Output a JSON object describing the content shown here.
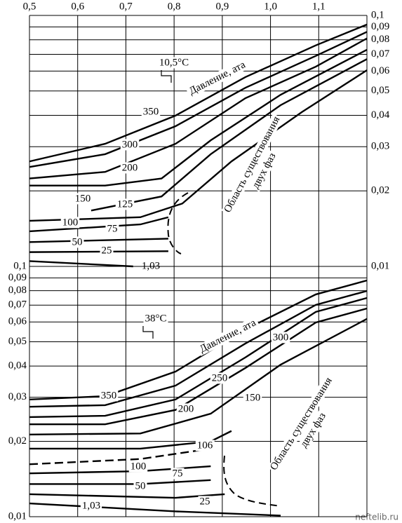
{
  "chart_data": [
    {
      "type": "line",
      "log_y": true,
      "y_axis_side": "right",
      "grid": true,
      "xlim": [
        0.5,
        1.2
      ],
      "xticks": [
        {
          "value": 0.5,
          "label": "0,5"
        },
        {
          "value": 0.6,
          "label": "0,6"
        },
        {
          "value": 0.7,
          "label": "0,7"
        },
        {
          "value": 0.8,
          "label": "0,8"
        },
        {
          "value": 0.9,
          "label": "0,9"
        },
        {
          "value": 1.0,
          "label": "1,0"
        },
        {
          "value": 1.1,
          "label": "1,1"
        }
      ],
      "ylim": [
        0.01,
        0.1
      ],
      "yticks": [
        {
          "value": 0.1,
          "label": "0,1"
        },
        {
          "value": 0.09,
          "label": "0,09"
        },
        {
          "value": 0.08,
          "label": "0,08"
        },
        {
          "value": 0.07,
          "label": "0,07"
        },
        {
          "value": 0.06,
          "label": "0,06"
        },
        {
          "value": 0.05,
          "label": "0,05"
        },
        {
          "value": 0.04,
          "label": "0,04"
        },
        {
          "value": 0.03,
          "label": "0,03"
        },
        {
          "value": 0.02,
          "label": "0,02"
        },
        {
          "value": 0.01,
          "label": "0,01"
        }
      ],
      "temperature": "10,5°С",
      "pressure_label": "Давление, ата",
      "region_label": [
        "Область существования",
        "двух фаз"
      ],
      "series": [
        {
          "name": "350",
          "color": "#000",
          "x": [
            0.5,
            0.657,
            0.803,
            0.948,
            1.094,
            1.2
          ],
          "values": [
            0.0262,
            0.0308,
            0.0399,
            0.0568,
            0.076,
            0.092
          ]
        },
        {
          "name": "300",
          "color": "#000",
          "x": [
            0.5,
            0.657,
            0.803,
            0.948,
            1.094,
            1.2
          ],
          "values": [
            0.0249,
            0.028,
            0.0362,
            0.0515,
            0.069,
            0.086
          ]
        },
        {
          "name": "200",
          "color": "#000",
          "x": [
            0.5,
            0.657,
            0.803,
            0.948,
            1.094,
            1.2
          ],
          "values": [
            0.0224,
            0.0238,
            0.0308,
            0.0468,
            0.0625,
            0.081
          ]
        },
        {
          "name": "150",
          "color": "#000",
          "x": [
            0.5,
            0.657,
            0.774,
            0.876,
            1.021,
            1.2
          ],
          "values": [
            0.021,
            0.021,
            0.0224,
            0.0318,
            0.0483,
            0.073
          ]
        },
        {
          "name": "125",
          "color": "#000",
          "x": [
            0.628,
            0.774,
            0.876,
            1.021,
            1.2
          ],
          "values": [
            0.0167,
            0.019,
            0.028,
            0.0439,
            0.067
          ]
        },
        {
          "name": "100",
          "color": "#000",
          "x": [
            0.5,
            0.73,
            0.817,
            0.919,
            1.065,
            1.2
          ],
          "values": [
            0.0152,
            0.0157,
            0.0178,
            0.0262,
            0.0412,
            0.0605
          ]
        },
        {
          "name": "75",
          "color": "#000",
          "x": [
            0.5,
            0.73,
            0.788
          ],
          "values": [
            0.0138,
            0.0147,
            0.0157
          ]
        },
        {
          "name": "50",
          "color": "#000",
          "x": [
            0.5,
            0.788
          ],
          "values": [
            0.0125,
            0.0129
          ]
        },
        {
          "name": "25",
          "color": "#000",
          "x": [
            0.5,
            0.788
          ],
          "values": [
            0.0114,
            0.0115
          ]
        },
        {
          "name": "1,03",
          "color": "#000",
          "x": [
            0.5,
            0.715
          ],
          "values": [
            0.0105,
            0.01
          ]
        }
      ]
    },
    {
      "type": "line",
      "log_y": true,
      "y_axis_side": "left",
      "grid": true,
      "xlim": [
        0.5,
        1.2
      ],
      "ylim": [
        0.01,
        0.1
      ],
      "yticks": [
        {
          "value": 0.1,
          "label": "0,1"
        },
        {
          "value": 0.09,
          "label": "0,09"
        },
        {
          "value": 0.08,
          "label": "0,08"
        },
        {
          "value": 0.07,
          "label": "0,07"
        },
        {
          "value": 0.06,
          "label": "0,06"
        },
        {
          "value": 0.05,
          "label": "0,05"
        },
        {
          "value": 0.04,
          "label": "0,04"
        },
        {
          "value": 0.03,
          "label": "0,03"
        },
        {
          "value": 0.02,
          "label": "0,02"
        },
        {
          "value": 0.01,
          "label": "0,01"
        }
      ],
      "temperature": "38°С",
      "pressure_label": "Давление, ата",
      "region_label": [
        "Область существования",
        "двух фаз"
      ],
      "series": [
        {
          "name": "350",
          "color": "#000",
          "x": [
            0.5,
            0.657,
            0.803,
            0.948,
            1.094,
            1.2
          ],
          "values": [
            0.0294,
            0.0303,
            0.038,
            0.056,
            0.0773,
            0.0879
          ]
        },
        {
          "name": "300",
          "color": "#000",
          "x": [
            0.5,
            0.657,
            0.803,
            0.948,
            1.094,
            1.2
          ],
          "values": [
            0.0275,
            0.0279,
            0.0334,
            0.0492,
            0.0702,
            0.0798
          ]
        },
        {
          "name": "250",
          "color": "#000",
          "x": [
            0.5,
            0.657,
            0.803,
            0.948,
            1.094,
            1.2
          ],
          "values": [
            0.025,
            0.0253,
            0.0294,
            0.0433,
            0.0658,
            0.0748
          ]
        },
        {
          "name": "200",
          "color": "#000",
          "x": [
            0.5,
            0.657,
            0.803,
            0.948,
            1.094,
            1.2
          ],
          "values": [
            0.0234,
            0.0234,
            0.0267,
            0.0393,
            0.0597,
            0.0679
          ]
        },
        {
          "name": "150",
          "color": "#000",
          "x": [
            0.5,
            0.73,
            0.876,
            1.021,
            1.2
          ],
          "values": [
            0.0213,
            0.0215,
            0.0258,
            0.0405,
            0.0617
          ]
        },
        {
          "name": "106",
          "color": "#000",
          "x": [
            0.5,
            0.73,
            0.876,
            0.919
          ],
          "values": [
            0.0187,
            0.0187,
            0.02,
            0.022
          ]
        },
        {
          "name": "100",
          "color": "#000",
          "dashed": true,
          "x": [
            0.5,
            0.73,
            0.876
          ],
          "values": [
            0.0162,
            0.017,
            0.0187
          ]
        },
        {
          "name": "75",
          "color": "#000",
          "x": [
            0.5,
            0.73,
            0.876
          ],
          "values": [
            0.0149,
            0.0152,
            0.0159
          ]
        },
        {
          "name": "50",
          "color": "#000",
          "x": [
            0.5,
            0.73,
            0.876
          ],
          "values": [
            0.0135,
            0.0135,
            0.014
          ]
        },
        {
          "name": "25",
          "color": "#000",
          "x": [
            0.5,
            0.803,
            0.905
          ],
          "values": [
            0.0123,
            0.0119,
            0.0123
          ]
        },
        {
          "name": "1,03",
          "color": "#000",
          "x": [
            0.5,
            0.803,
            1.021
          ],
          "values": [
            0.0113,
            0.0105,
            0.0101
          ]
        }
      ]
    }
  ],
  "watermark": "neftelib.ru"
}
